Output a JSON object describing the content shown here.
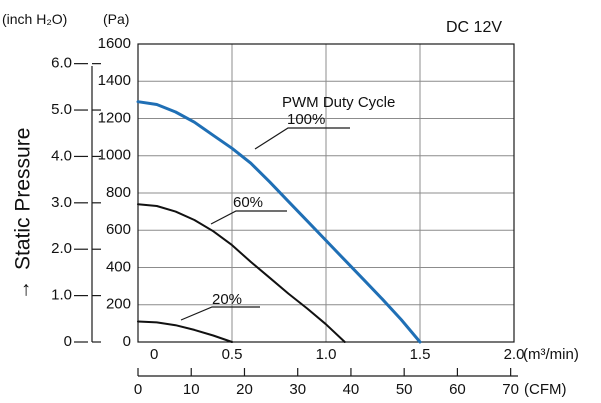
{
  "chart_data": {
    "type": "line",
    "note": "DC 12V",
    "ylabel": "Static Pressure",
    "ylabel_arrow": "→",
    "y_units": {
      "inch": "(inch H₂O)",
      "pa": "(Pa)"
    },
    "x_units": {
      "m3": "(m³/min)",
      "cfm": "(CFM)"
    },
    "legend_title": "PWM Duty Cycle",
    "xlim": [
      0,
      2.0
    ],
    "ylim": [
      0,
      1600
    ],
    "grid": true,
    "x_ticks_m3": [
      "0",
      "0.5",
      "1.0",
      "1.5",
      "2.0"
    ],
    "x_ticks_cfm": [
      "0",
      "10",
      "20",
      "30",
      "40",
      "50",
      "60",
      "70"
    ],
    "y_ticks_pa": [
      "0",
      "200",
      "400",
      "600",
      "800",
      "1000",
      "1200",
      "1400",
      "1600"
    ],
    "y_ticks_inch": [
      "0",
      "1.0",
      "2.0",
      "3.0",
      "4.0",
      "5.0",
      "6.0"
    ],
    "series": [
      {
        "name": "100%",
        "color": "#1f6fb5",
        "points": [
          [
            0,
            1290
          ],
          [
            0.1,
            1275
          ],
          [
            0.2,
            1235
          ],
          [
            0.3,
            1180
          ],
          [
            0.4,
            1110
          ],
          [
            0.5,
            1040
          ],
          [
            0.6,
            960
          ],
          [
            0.7,
            860
          ],
          [
            0.8,
            755
          ],
          [
            0.9,
            650
          ],
          [
            1.0,
            545
          ],
          [
            1.1,
            440
          ],
          [
            1.2,
            335
          ],
          [
            1.3,
            230
          ],
          [
            1.4,
            120
          ],
          [
            1.5,
            0
          ]
        ]
      },
      {
        "name": "60%",
        "color": "#111111",
        "points": [
          [
            0,
            740
          ],
          [
            0.1,
            730
          ],
          [
            0.2,
            700
          ],
          [
            0.3,
            655
          ],
          [
            0.4,
            595
          ],
          [
            0.5,
            520
          ],
          [
            0.6,
            430
          ],
          [
            0.7,
            345
          ],
          [
            0.8,
            260
          ],
          [
            0.9,
            180
          ],
          [
            1.0,
            95
          ],
          [
            1.1,
            0
          ]
        ]
      },
      {
        "name": "20%",
        "color": "#111111",
        "points": [
          [
            0,
            110
          ],
          [
            0.1,
            105
          ],
          [
            0.2,
            90
          ],
          [
            0.3,
            65
          ],
          [
            0.4,
            35
          ],
          [
            0.5,
            0
          ]
        ]
      }
    ]
  }
}
